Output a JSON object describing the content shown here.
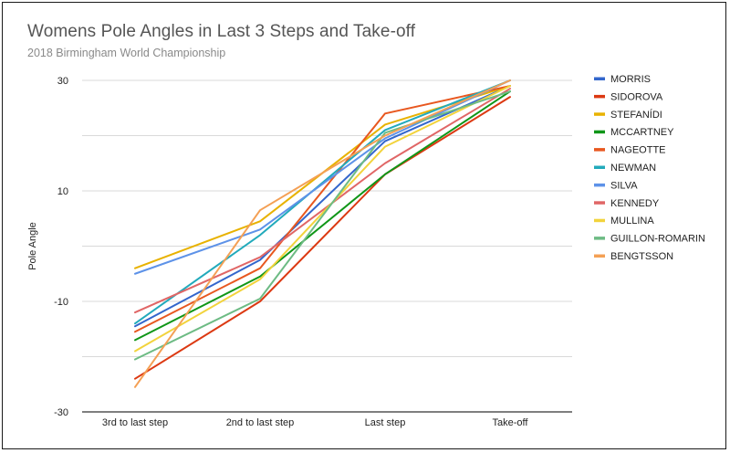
{
  "chart_data": {
    "type": "line",
    "title": "Womens Pole Angles in Last 3 Steps and Take-off",
    "subtitle": "2018 Birmingham World Championship",
    "xlabel": "",
    "ylabel": "Pole Angle",
    "categories": [
      "3rd to last step",
      "2nd to last step",
      "Last step",
      "Take-off"
    ],
    "ylim": [
      -30,
      30
    ],
    "yticks": [
      -30,
      -10,
      10,
      30
    ],
    "grid": true,
    "legend_position": "right",
    "series": [
      {
        "name": "MORRIS",
        "color": "#3366cc",
        "values": [
          -14.5,
          -2.5,
          19,
          29
        ]
      },
      {
        "name": "SIDOROVA",
        "color": "#dc3912",
        "values": [
          -24,
          -10,
          13,
          27
        ]
      },
      {
        "name": "STEFANÍDI",
        "color": "#e8b200",
        "values": [
          -4,
          4.5,
          22,
          29
        ]
      },
      {
        "name": "MCCARTNEY",
        "color": "#109618",
        "values": [
          -17,
          -5.5,
          13,
          28
        ]
      },
      {
        "name": "NAGEOTTE",
        "color": "#e8571f",
        "values": [
          -15.5,
          -4,
          24,
          29
        ]
      },
      {
        "name": "NEWMAN",
        "color": "#22aabb",
        "values": [
          -14,
          2,
          21,
          30
        ]
      },
      {
        "name": "SILVA",
        "color": "#5d92e8",
        "values": [
          -5,
          3,
          19.5,
          30
        ]
      },
      {
        "name": "KENNEDY",
        "color": "#e06666",
        "values": [
          -12,
          -2,
          15,
          28.5
        ]
      },
      {
        "name": "MULLINA",
        "color": "#f2d33c",
        "values": [
          -19,
          -6,
          18,
          29
        ]
      },
      {
        "name": "GUILLON-ROMARIN",
        "color": "#6dbb84",
        "values": [
          -20.5,
          -9.5,
          20.5,
          28
        ]
      },
      {
        "name": "BENGTSSON",
        "color": "#f4a055",
        "values": [
          -25.5,
          6.5,
          20,
          30
        ]
      }
    ]
  }
}
